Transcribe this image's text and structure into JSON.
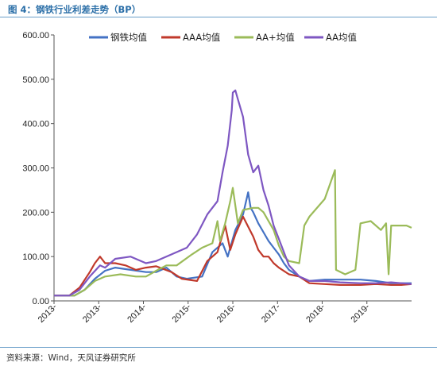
{
  "header": {
    "title": "图 4：钢铁行业利差走势（BP）"
  },
  "footer": {
    "source": "资料来源：Wind，天风证券研究所"
  },
  "chart_data": {
    "type": "line",
    "title": "",
    "xlabel": "",
    "ylabel": "",
    "ylim": [
      0,
      600
    ],
    "xlim": [
      2013.0,
      2020.0
    ],
    "yticks": [
      "0.00",
      "100.00",
      "200.00",
      "300.00",
      "400.00",
      "500.00",
      "600.00"
    ],
    "xticks": [
      "2013-",
      "2013-",
      "2014-",
      "2015-",
      "2016-",
      "2017-",
      "2018-",
      "2019-"
    ],
    "legend_position": "top",
    "grid": false,
    "series": [
      {
        "name": "钢铁均值",
        "color": "#4472C4",
        "points": [
          [
            2013.0,
            12
          ],
          [
            2013.4,
            12
          ],
          [
            2013.6,
            25
          ],
          [
            2013.8,
            50
          ],
          [
            2014.0,
            68
          ],
          [
            2014.2,
            75
          ],
          [
            2014.5,
            70
          ],
          [
            2014.8,
            65
          ],
          [
            2015.0,
            65
          ],
          [
            2015.2,
            75
          ],
          [
            2015.4,
            55
          ],
          [
            2015.6,
            50
          ],
          [
            2015.9,
            55
          ],
          [
            2016.1,
            110
          ],
          [
            2016.3,
            130
          ],
          [
            2016.4,
            100
          ],
          [
            2016.55,
            160
          ],
          [
            2016.7,
            195
          ],
          [
            2016.8,
            245
          ],
          [
            2016.85,
            210
          ],
          [
            2016.9,
            200
          ],
          [
            2017.0,
            175
          ],
          [
            2017.1,
            155
          ],
          [
            2017.2,
            135
          ],
          [
            2017.3,
            120
          ],
          [
            2017.4,
            105
          ],
          [
            2017.5,
            85
          ],
          [
            2017.6,
            70
          ],
          [
            2017.8,
            55
          ],
          [
            2018.0,
            45
          ],
          [
            2018.3,
            48
          ],
          [
            2018.6,
            48
          ],
          [
            2019.0,
            48
          ],
          [
            2019.3,
            45
          ],
          [
            2019.6,
            40
          ],
          [
            2019.8,
            40
          ],
          [
            2020.0,
            40
          ]
        ]
      },
      {
        "name": "AAA均值",
        "color": "#C0392B",
        "points": [
          [
            2013.0,
            12
          ],
          [
            2013.3,
            12
          ],
          [
            2013.5,
            30
          ],
          [
            2013.7,
            65
          ],
          [
            2013.8,
            85
          ],
          [
            2013.9,
            100
          ],
          [
            2014.0,
            85
          ],
          [
            2014.2,
            85
          ],
          [
            2014.4,
            80
          ],
          [
            2014.6,
            70
          ],
          [
            2014.8,
            75
          ],
          [
            2015.0,
            78
          ],
          [
            2015.3,
            65
          ],
          [
            2015.5,
            50
          ],
          [
            2015.8,
            45
          ],
          [
            2016.0,
            90
          ],
          [
            2016.2,
            110
          ],
          [
            2016.35,
            170
          ],
          [
            2016.45,
            115
          ],
          [
            2016.55,
            150
          ],
          [
            2016.7,
            190
          ],
          [
            2016.9,
            145
          ],
          [
            2017.0,
            115
          ],
          [
            2017.1,
            100
          ],
          [
            2017.2,
            100
          ],
          [
            2017.3,
            85
          ],
          [
            2017.4,
            75
          ],
          [
            2017.6,
            60
          ],
          [
            2017.8,
            55
          ],
          [
            2018.0,
            40
          ],
          [
            2018.3,
            38
          ],
          [
            2018.6,
            36
          ],
          [
            2019.0,
            36
          ],
          [
            2019.3,
            38
          ],
          [
            2019.6,
            36
          ],
          [
            2019.8,
            36
          ],
          [
            2020.0,
            38
          ]
        ]
      },
      {
        "name": "AA+均值",
        "color": "#9BBB59",
        "points": [
          [
            2013.0,
            12
          ],
          [
            2013.4,
            12
          ],
          [
            2013.6,
            25
          ],
          [
            2013.8,
            45
          ],
          [
            2014.0,
            55
          ],
          [
            2014.3,
            60
          ],
          [
            2014.6,
            55
          ],
          [
            2014.8,
            55
          ],
          [
            2015.0,
            68
          ],
          [
            2015.2,
            80
          ],
          [
            2015.4,
            80
          ],
          [
            2015.7,
            105
          ],
          [
            2015.9,
            120
          ],
          [
            2016.1,
            130
          ],
          [
            2016.2,
            180
          ],
          [
            2016.25,
            135
          ],
          [
            2016.35,
            175
          ],
          [
            2016.45,
            225
          ],
          [
            2016.5,
            255
          ],
          [
            2016.6,
            175
          ],
          [
            2016.7,
            205
          ],
          [
            2016.9,
            210
          ],
          [
            2017.0,
            210
          ],
          [
            2017.1,
            200
          ],
          [
            2017.3,
            160
          ],
          [
            2017.4,
            125
          ],
          [
            2017.5,
            100
          ],
          [
            2017.6,
            90
          ],
          [
            2017.8,
            85
          ],
          [
            2017.9,
            170
          ],
          [
            2018.0,
            190
          ],
          [
            2018.3,
            230
          ],
          [
            2018.5,
            295
          ],
          [
            2018.52,
            70
          ],
          [
            2018.7,
            60
          ],
          [
            2018.9,
            70
          ],
          [
            2019.0,
            175
          ],
          [
            2019.2,
            180
          ],
          [
            2019.4,
            160
          ],
          [
            2019.5,
            175
          ],
          [
            2019.55,
            60
          ],
          [
            2019.6,
            170
          ],
          [
            2019.8,
            170
          ],
          [
            2019.9,
            170
          ],
          [
            2020.0,
            165
          ]
        ]
      },
      {
        "name": "AA均值",
        "color": "#7E57C2",
        "points": [
          [
            2013.0,
            12
          ],
          [
            2013.3,
            12
          ],
          [
            2013.5,
            25
          ],
          [
            2013.7,
            55
          ],
          [
            2013.9,
            80
          ],
          [
            2014.0,
            75
          ],
          [
            2014.2,
            95
          ],
          [
            2014.5,
            100
          ],
          [
            2014.8,
            85
          ],
          [
            2015.0,
            90
          ],
          [
            2015.3,
            105
          ],
          [
            2015.6,
            120
          ],
          [
            2015.8,
            150
          ],
          [
            2016.0,
            195
          ],
          [
            2016.2,
            225
          ],
          [
            2016.3,
            290
          ],
          [
            2016.4,
            350
          ],
          [
            2016.48,
            430
          ],
          [
            2016.5,
            470
          ],
          [
            2016.55,
            475
          ],
          [
            2016.6,
            455
          ],
          [
            2016.7,
            415
          ],
          [
            2016.8,
            330
          ],
          [
            2016.9,
            290
          ],
          [
            2017.0,
            305
          ],
          [
            2017.1,
            250
          ],
          [
            2017.2,
            215
          ],
          [
            2017.3,
            170
          ],
          [
            2017.4,
            140
          ],
          [
            2017.6,
            80
          ],
          [
            2017.8,
            55
          ],
          [
            2018.0,
            45
          ],
          [
            2018.3,
            45
          ],
          [
            2018.6,
            42
          ],
          [
            2019.0,
            40
          ],
          [
            2019.3,
            40
          ],
          [
            2019.6,
            42
          ],
          [
            2019.8,
            40
          ],
          [
            2020.0,
            38
          ]
        ]
      }
    ]
  }
}
